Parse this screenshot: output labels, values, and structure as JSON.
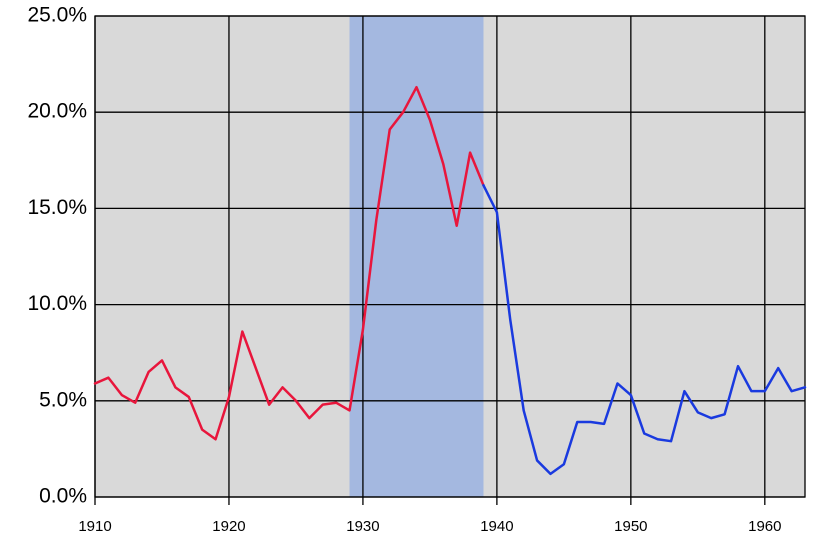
{
  "chart_data": {
    "type": "line",
    "xlim": [
      1910,
      1963
    ],
    "ylim": [
      0,
      25
    ],
    "xticks": [
      1910,
      1920,
      1930,
      1940,
      1950,
      1960
    ],
    "yticks": [
      {
        "value": 0,
        "label": "0.0%"
      },
      {
        "value": 5,
        "label": "5.0%"
      },
      {
        "value": 10,
        "label": "10.0%"
      },
      {
        "value": 15,
        "label": "15.0%"
      },
      {
        "value": 20,
        "label": "20.0%"
      },
      {
        "value": 25,
        "label": "25.0%"
      }
    ],
    "grid": true,
    "shaded_range": [
      1929,
      1939
    ],
    "shade_color": "#a4b8e0",
    "background": "#d9d9d9",
    "series": [
      {
        "color": "#e8163c",
        "x": [
          1910,
          1911,
          1912,
          1913,
          1914,
          1915,
          1916,
          1917,
          1918,
          1919,
          1920,
          1921,
          1922,
          1923,
          1924,
          1925,
          1926,
          1927,
          1928,
          1929,
          1930,
          1931,
          1932,
          1933,
          1934,
          1935,
          1936,
          1937,
          1938,
          1939
        ],
        "values": [
          5.9,
          6.2,
          5.3,
          4.9,
          6.5,
          7.1,
          5.7,
          5.2,
          3.5,
          3.0,
          5.2,
          8.6,
          6.7,
          4.8,
          5.7,
          5.0,
          4.1,
          4.8,
          4.9,
          4.5,
          8.7,
          14.4,
          19.1,
          20.0,
          21.3,
          19.6,
          17.3,
          14.1,
          17.9,
          16.2
        ]
      },
      {
        "color": "#1a3adf",
        "x": [
          1939,
          1940,
          1941,
          1942,
          1943,
          1944,
          1945,
          1946,
          1947,
          1948,
          1949,
          1950,
          1951,
          1952,
          1953,
          1954,
          1955,
          1956,
          1957,
          1958,
          1959,
          1960,
          1961,
          1962,
          1963
        ],
        "values": [
          16.2,
          14.8,
          9.2,
          4.5,
          1.9,
          1.2,
          1.7,
          3.9,
          3.9,
          3.8,
          5.9,
          5.3,
          3.3,
          3.0,
          2.9,
          5.5,
          4.4,
          4.1,
          4.3,
          6.8,
          5.5,
          5.5,
          6.7,
          5.5,
          5.7
        ]
      }
    ]
  }
}
